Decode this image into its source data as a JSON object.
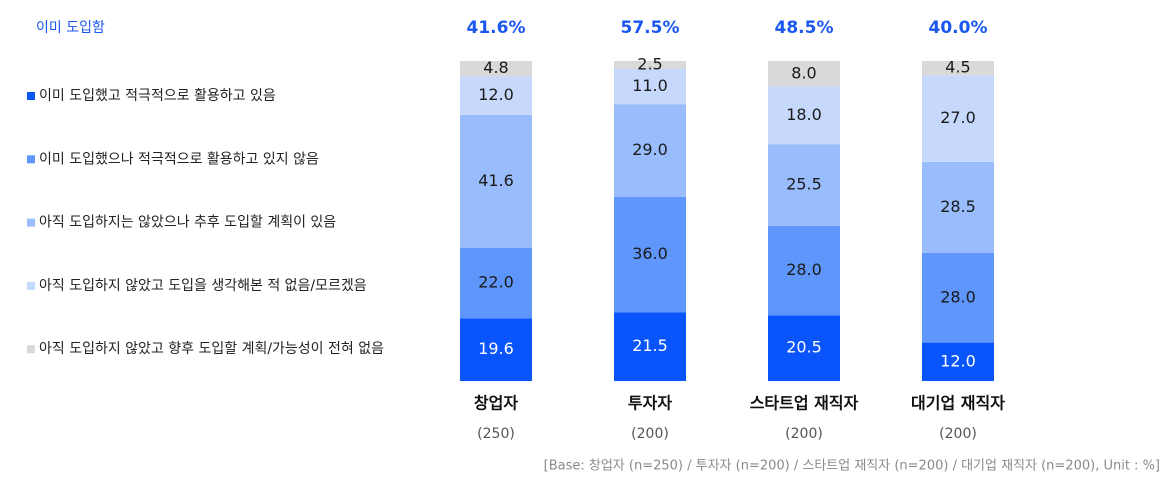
{
  "chart_data": {
    "type": "stacked_bar",
    "categories": [
      "창업자",
      "투자자",
      "스타트업 재직자",
      "대기업 재직자"
    ],
    "category_notes": [
      "(250)",
      "(200)",
      "(200)",
      "(200)"
    ],
    "adopted": {
      "name": "이미 도입함",
      "color": "#1a56f0",
      "values": [
        41.6,
        57.5,
        48.5,
        40.0
      ],
      "value_labels": [
        "41.6%",
        "57.5%",
        "48.5%",
        "40.0%"
      ]
    },
    "series": [
      {
        "name": "이미 도입했고 적극적으로 활용하고 있음",
        "color": "#0a55fb",
        "text_color": "#ffffff",
        "values": [
          19.6,
          21.5,
          20.5,
          12.0
        ],
        "value_labels": [
          "19.6",
          "21.5",
          "20.5",
          "12.0"
        ]
      },
      {
        "name": "이미 도입했으나 적극적으로 활용하고 있지 않음",
        "color": "#5e96fb",
        "text_color": "#1a1a1a",
        "values": [
          22.0,
          36.0,
          28.0,
          28.0
        ],
        "value_labels": [
          "22.0",
          "36.0",
          "28.0",
          "28.0"
        ]
      },
      {
        "name": "아직 도입하지는 않았으나 추후 도입할 계획이 있음",
        "color": "#98bcfc",
        "text_color": "#1a1a1a",
        "values": [
          41.6,
          29.0,
          25.5,
          28.5
        ],
        "value_labels": [
          "41.6",
          "29.0",
          "25.5",
          "28.5"
        ]
      },
      {
        "name": "아직 도입하지 않았고 도입을 생각해본 적 없음/모르겠음",
        "color": "#c6d9fd",
        "text_color": "#1a1a1a",
        "values": [
          12.0,
          11.0,
          18.0,
          27.0
        ],
        "value_labels": [
          "12.0",
          "11.0",
          "18.0",
          "27.0"
        ]
      },
      {
        "name": "아직 도입하지 않았고 향후 도입할 계획/가능성이 전혀 없음",
        "color": "#d9d9d9",
        "text_color": "#1a1a1a",
        "values": [
          4.8,
          2.5,
          8.0,
          4.5
        ],
        "value_labels": [
          "4.8",
          "2.5",
          "8.0",
          "4.5"
        ]
      }
    ],
    "ylim": [
      0,
      100
    ],
    "footnote": "[Base: 창업자 (n=250) / 투자자 (n=200) / 스타트업 재직자 (n=200) / 대기업 재직자 (n=200), Unit : %]"
  }
}
